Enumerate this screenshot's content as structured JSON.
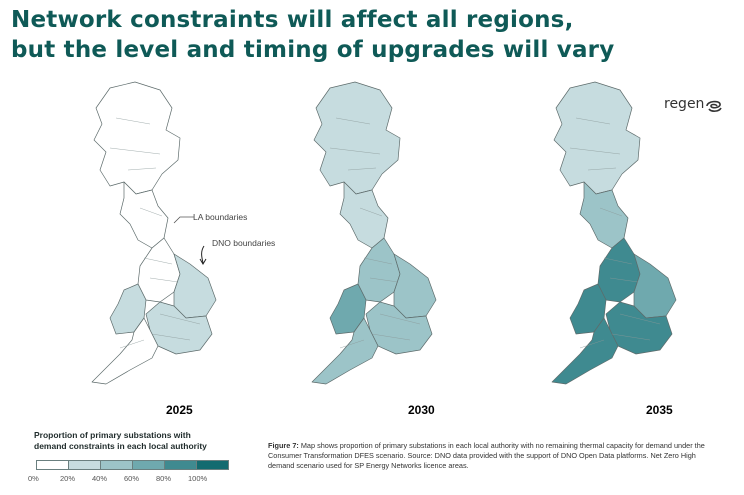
{
  "title": {
    "line1": "Network constraints will affect all regions,",
    "line2": "but the level and timing of upgrades will vary"
  },
  "logo": {
    "text": "regen",
    "icon": "regen-swirl-icon"
  },
  "maps": [
    {
      "year": "2025",
      "fills": {
        "north": 0,
        "borders": 0,
        "wales": 1,
        "midlands": 0,
        "east": 1,
        "southwest": 0,
        "southeast": 1
      }
    },
    {
      "year": "2030",
      "fills": {
        "north": 1,
        "borders": 1,
        "wales": 3,
        "midlands": 2,
        "east": 2,
        "southwest": 2,
        "southeast": 2
      }
    },
    {
      "year": "2035",
      "fills": {
        "north": 1,
        "borders": 2,
        "wales": 4,
        "midlands": 4,
        "east": 3,
        "southwest": 4,
        "southeast": 4
      }
    }
  ],
  "annotations": {
    "la_boundaries": "LA boundaries",
    "dno_boundaries": "DNO boundaries"
  },
  "legend": {
    "title_line1": "Proportion of primary substations with",
    "title_line2": "demand constraints in each local authority",
    "colors": [
      "#ffffff",
      "#c6dcdf",
      "#9cc4c8",
      "#6fa9ae",
      "#3f8a90",
      "#136b70"
    ],
    "ticks": [
      "0%",
      "20%",
      "40%",
      "60%",
      "80%",
      "100%"
    ]
  },
  "caption": {
    "label": "Figure 7:",
    "text": "Map shows proportion of primary substations in each local authority with no remaining thermal capacity for demand under the Consumer Transformation DFES scenario. Source: DNO data provided with the support of DNO Open Data platforms. Net Zero High demand scenario used for SP Energy Networks licence areas."
  }
}
